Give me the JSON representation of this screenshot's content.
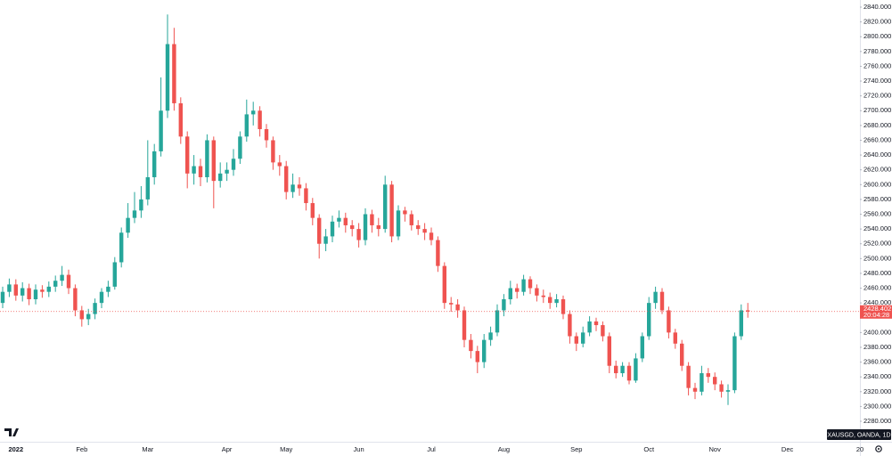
{
  "chart_data": {
    "type": "candlestick",
    "symbol": "XAUSGD, OANDA, 1D",
    "countdown": "20:04:28",
    "up_color": "#26a69a",
    "down_color": "#ef5350",
    "ylim": [
      2280,
      2840
    ],
    "yticks": [
      {
        "value": 2280,
        "label": "2280.000"
      },
      {
        "value": 2300,
        "label": "2300.000"
      },
      {
        "value": 2320,
        "label": "2320.000"
      },
      {
        "value": 2340,
        "label": "2340.000"
      },
      {
        "value": 2360,
        "label": "2360.000"
      },
      {
        "value": 2380,
        "label": "2380.000"
      },
      {
        "value": 2400,
        "label": "2400.000"
      },
      {
        "value": 2440,
        "label": "2440.000"
      },
      {
        "value": 2460,
        "label": "2460.000"
      },
      {
        "value": 2480,
        "label": "2480.000"
      },
      {
        "value": 2500,
        "label": "2500.000"
      },
      {
        "value": 2520,
        "label": "2520.000"
      },
      {
        "value": 2540,
        "label": "2540.000"
      },
      {
        "value": 2560,
        "label": "2560.000"
      },
      {
        "value": 2580,
        "label": "2580.000"
      },
      {
        "value": 2600,
        "label": "2600.000"
      },
      {
        "value": 2620,
        "label": "2620.000"
      },
      {
        "value": 2640,
        "label": "2640.000"
      },
      {
        "value": 2660,
        "label": "2660.000"
      },
      {
        "value": 2680,
        "label": "2680.000"
      },
      {
        "value": 2700,
        "label": "2700.000"
      },
      {
        "value": 2720,
        "label": "2720.000"
      },
      {
        "value": 2740,
        "label": "2740.000"
      },
      {
        "value": 2760,
        "label": "2760.000"
      },
      {
        "value": 2780,
        "label": "2780.000"
      },
      {
        "value": 2800,
        "label": "2800.000"
      },
      {
        "value": 2820,
        "label": "2820.000"
      },
      {
        "value": 2840,
        "label": "2840.000"
      }
    ],
    "grid": false,
    "categories": [
      null,
      null,
      "2022",
      null,
      null,
      null,
      null,
      null,
      null,
      null,
      null,
      null,
      "Feb",
      null,
      null,
      null,
      null,
      null,
      null,
      null,
      null,
      null,
      "Mar",
      null,
      null,
      null,
      null,
      null,
      null,
      null,
      null,
      null,
      null,
      null,
      "Apr",
      null,
      null,
      null,
      null,
      null,
      null,
      null,
      null,
      "May",
      null,
      null,
      null,
      null,
      null,
      null,
      null,
      null,
      null,
      null,
      "Jun",
      null,
      null,
      null,
      null,
      null,
      null,
      null,
      null,
      null,
      null,
      "Jul",
      null,
      null,
      null,
      null,
      null,
      null,
      null,
      null,
      null,
      null,
      "Aug",
      null,
      null,
      null,
      null,
      null,
      null,
      null,
      null,
      null,
      null,
      "Sep",
      null,
      null,
      null,
      null,
      null,
      null,
      null,
      null,
      null,
      null,
      "Oct",
      null,
      null,
      null,
      null,
      null,
      null,
      null,
      null,
      null,
      "Nov",
      null,
      null,
      null,
      null,
      null,
      null,
      null,
      null,
      null,
      null,
      "Dec",
      null,
      null,
      null,
      null,
      null,
      null,
      null,
      null,
      null,
      null,
      "20"
    ],
    "open": [
      2440,
      2455,
      2465,
      2450,
      2460,
      2445,
      2458,
      2455,
      2462,
      2470,
      2478,
      2460,
      2430,
      2418,
      2425,
      2440,
      2455,
      2462,
      2495,
      2535,
      2555,
      2565,
      2580,
      2610,
      2645,
      2700,
      2790,
      2710,
      2665,
      2615,
      2625,
      2610,
      2660,
      2605,
      2615,
      2620,
      2635,
      2665,
      2695,
      2700,
      2675,
      2660,
      2630,
      2625,
      2590,
      2600,
      2595,
      2575,
      2555,
      2520,
      2530,
      2550,
      2555,
      2545,
      2540,
      2525,
      2560,
      2545,
      2540,
      2600,
      2530,
      2565,
      2560,
      2545,
      2540,
      2535,
      2525,
      2490,
      2440,
      2438,
      2430,
      2390,
      2375,
      2360,
      2390,
      2400,
      2430,
      2445,
      2460,
      2455,
      2472,
      2460,
      2450,
      2448,
      2440,
      2445,
      2425,
      2395,
      2385,
      2400,
      2415,
      2410,
      2395,
      2355,
      2345,
      2355,
      2335,
      2365,
      2395,
      2440,
      2455,
      2430,
      2400,
      2385,
      2355,
      2325,
      2320,
      2345,
      2340,
      2330,
      2320,
      2322,
      2395,
      2430,
      null,
      null,
      null,
      null,
      null,
      null,
      null,
      null,
      null,
      null,
      null,
      null,
      null,
      null,
      null,
      null,
      null
    ],
    "high": [
      2462,
      2473,
      2472,
      2468,
      2466,
      2465,
      2464,
      2469,
      2477,
      2490,
      2485,
      2465,
      2436,
      2432,
      2446,
      2460,
      2470,
      2502,
      2542,
      2575,
      2590,
      2598,
      2660,
      2655,
      2745,
      2830,
      2812,
      2718,
      2672,
      2640,
      2635,
      2668,
      2665,
      2630,
      2630,
      2648,
      2672,
      2715,
      2712,
      2706,
      2682,
      2665,
      2640,
      2632,
      2615,
      2610,
      2602,
      2582,
      2560,
      2540,
      2558,
      2565,
      2562,
      2552,
      2548,
      2568,
      2566,
      2555,
      2612,
      2605,
      2572,
      2570,
      2565,
      2552,
      2548,
      2542,
      2530,
      2495,
      2448,
      2445,
      2435,
      2398,
      2382,
      2398,
      2408,
      2438,
      2452,
      2470,
      2466,
      2478,
      2476,
      2465,
      2458,
      2454,
      2452,
      2450,
      2430,
      2400,
      2408,
      2422,
      2420,
      2415,
      2400,
      2362,
      2360,
      2360,
      2372,
      2400,
      2448,
      2462,
      2460,
      2435,
      2405,
      2390,
      2360,
      2332,
      2355,
      2352,
      2346,
      2335,
      2330,
      2400,
      2438,
      2440,
      null,
      null,
      null,
      null,
      null,
      null,
      null,
      null,
      null,
      null,
      null,
      null,
      null,
      null,
      null,
      null,
      null
    ],
    "low": [
      2433,
      2448,
      2443,
      2442,
      2437,
      2438,
      2447,
      2448,
      2455,
      2463,
      2452,
      2422,
      2408,
      2410,
      2418,
      2433,
      2448,
      2458,
      2488,
      2528,
      2548,
      2555,
      2572,
      2600,
      2638,
      2690,
      2700,
      2655,
      2595,
      2600,
      2598,
      2603,
      2568,
      2596,
      2605,
      2612,
      2628,
      2658,
      2680,
      2665,
      2650,
      2620,
      2612,
      2580,
      2582,
      2585,
      2565,
      2545,
      2500,
      2510,
      2522,
      2542,
      2535,
      2530,
      2515,
      2518,
      2535,
      2530,
      2535,
      2522,
      2525,
      2550,
      2538,
      2532,
      2525,
      2518,
      2482,
      2432,
      2428,
      2420,
      2380,
      2365,
      2345,
      2352,
      2382,
      2395,
      2422,
      2438,
      2446,
      2450,
      2452,
      2442,
      2440,
      2432,
      2434,
      2418,
      2385,
      2375,
      2380,
      2395,
      2402,
      2388,
      2345,
      2338,
      2340,
      2330,
      2332,
      2360,
      2390,
      2432,
      2425,
      2392,
      2378,
      2348,
      2315,
      2310,
      2315,
      2332,
      2322,
      2312,
      2302,
      2318,
      2390,
      2420,
      null,
      null,
      null,
      null,
      null,
      null,
      null,
      null,
      null,
      null,
      null,
      null,
      null,
      null,
      null,
      null,
      null
    ],
    "close": [
      2455,
      2465,
      2450,
      2460,
      2445,
      2458,
      2455,
      2462,
      2470,
      2478,
      2460,
      2430,
      2418,
      2425,
      2440,
      2455,
      2462,
      2495,
      2535,
      2555,
      2565,
      2580,
      2610,
      2645,
      2700,
      2790,
      2710,
      2665,
      2615,
      2625,
      2610,
      2660,
      2605,
      2615,
      2620,
      2635,
      2665,
      2695,
      2700,
      2675,
      2660,
      2630,
      2625,
      2590,
      2600,
      2595,
      2575,
      2555,
      2520,
      2530,
      2550,
      2555,
      2545,
      2540,
      2525,
      2560,
      2545,
      2540,
      2600,
      2530,
      2565,
      2560,
      2545,
      2540,
      2535,
      2525,
      2490,
      2440,
      2438,
      2430,
      2390,
      2375,
      2360,
      2390,
      2400,
      2430,
      2445,
      2460,
      2455,
      2472,
      2460,
      2450,
      2448,
      2440,
      2445,
      2425,
      2395,
      2385,
      2400,
      2415,
      2410,
      2395,
      2355,
      2345,
      2355,
      2335,
      2365,
      2395,
      2440,
      2455,
      2430,
      2400,
      2385,
      2355,
      2325,
      2320,
      2345,
      2340,
      2330,
      2320,
      2322,
      2395,
      2430,
      2428.402,
      null,
      null,
      null,
      null,
      null,
      null,
      null,
      null,
      null,
      null,
      null,
      null,
      null,
      null,
      null,
      null,
      null
    ]
  }
}
